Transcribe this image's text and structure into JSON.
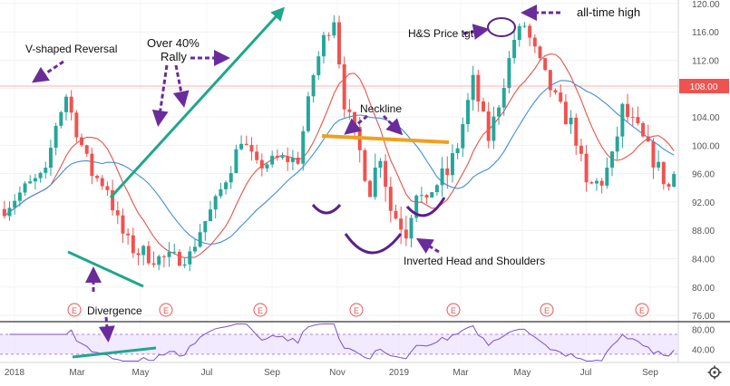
{
  "chart_data": {
    "type": "candlestick",
    "price_axis": {
      "ticks": [
        "120.00",
        "116.00",
        "112.00",
        "108.00",
        "104.00",
        "100.00",
        "96.00",
        "92.00",
        "88.00",
        "84.00",
        "80.00",
        "76.00"
      ],
      "ylim": [
        75.5,
        120.5
      ]
    },
    "time_axis": {
      "ticks": [
        "2018",
        "Mar",
        "May",
        "Jul",
        "Sep",
        "Nov",
        "2019",
        "Mar",
        "May",
        "Jul",
        "Sep"
      ]
    },
    "current_price": {
      "value": 108.0,
      "label": "108.00"
    },
    "earnings_markers": [
      "E",
      "E",
      "E",
      "E",
      "E",
      "E",
      "E"
    ],
    "price_path": [
      [
        0,
        91
      ],
      [
        4,
        94
      ],
      [
        8,
        96
      ],
      [
        10,
        103
      ],
      [
        12,
        107
      ],
      [
        14,
        102
      ],
      [
        17,
        96
      ],
      [
        20,
        94
      ],
      [
        22,
        89
      ],
      [
        24,
        86
      ],
      [
        26,
        85
      ],
      [
        30,
        84
      ],
      [
        33,
        84
      ],
      [
        36,
        84.5
      ],
      [
        38,
        88
      ],
      [
        41,
        92
      ],
      [
        44,
        97
      ],
      [
        46,
        101
      ],
      [
        49,
        97
      ],
      [
        53,
        98
      ],
      [
        57,
        98
      ],
      [
        60,
        110
      ],
      [
        62,
        115
      ],
      [
        64,
        118
      ],
      [
        66,
        106
      ],
      [
        69,
        99
      ],
      [
        71,
        94
      ],
      [
        73,
        99
      ],
      [
        75,
        91
      ],
      [
        78,
        88
      ],
      [
        80,
        94
      ],
      [
        82,
        91
      ],
      [
        83,
        94
      ],
      [
        86,
        96
      ],
      [
        88,
        100
      ],
      [
        91,
        109
      ],
      [
        94,
        101
      ],
      [
        96,
        106
      ],
      [
        99,
        115
      ],
      [
        101,
        117
      ],
      [
        102,
        115
      ],
      [
        106,
        108
      ],
      [
        108,
        105
      ],
      [
        110,
        103
      ],
      [
        111,
        101
      ],
      [
        113,
        94
      ],
      [
        116,
        95
      ],
      [
        118,
        98
      ],
      [
        120,
        105
      ],
      [
        123,
        102
      ],
      [
        126,
        98
      ],
      [
        129,
        94
      ],
      [
        130,
        96
      ]
    ],
    "volatility": [
      [
        0,
        1.8
      ],
      [
        20,
        1.8
      ],
      [
        22,
        2.8
      ],
      [
        38,
        1.9
      ],
      [
        56,
        1.8
      ],
      [
        66,
        2.0
      ],
      [
        70,
        3.0
      ],
      [
        85,
        3.0
      ],
      [
        90,
        2.2
      ],
      [
        105,
        1.9
      ],
      [
        110,
        2.6
      ],
      [
        130,
        2.4
      ]
    ],
    "series": [
      {
        "type": "sma",
        "color": "#e8534b",
        "period": 50
      },
      {
        "type": "sma",
        "color": "#3f8fd6",
        "period": 100
      }
    ],
    "rsi_panel": {
      "ticks": [
        "80.00",
        "40.00"
      ],
      "ylim": [
        15,
        92
      ],
      "band": [
        30,
        70
      ],
      "color": "#7b4fcf",
      "band_color": "#eadcff"
    },
    "colors": {
      "up": "#26a69a",
      "down": "#ef5350",
      "annotation": "#6b2c9b",
      "neckline": "#f0a020",
      "trend": "#1fa889"
    },
    "annotations": [
      {
        "text": "V-shaped Reversal"
      },
      {
        "text": "Over 40%"
      },
      {
        "text": "Rally"
      },
      {
        "text": "Neckline"
      },
      {
        "text": "H&S Price tgt"
      },
      {
        "text": "all-time high"
      },
      {
        "text": "Inverted Head and Shoulders"
      },
      {
        "text": "Divergence"
      }
    ]
  }
}
